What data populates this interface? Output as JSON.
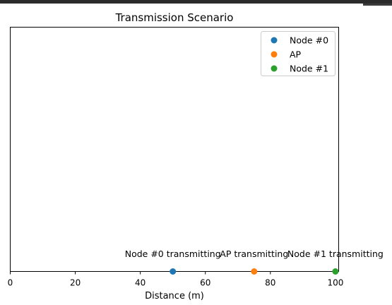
{
  "chart_data": {
    "type": "scatter",
    "title": "Transmission Scenario",
    "xlabel": "Distance (m)",
    "ylabel": "",
    "xlim": [
      0,
      101
    ],
    "ylim": [
      0,
      1
    ],
    "xticks": [
      0,
      20,
      40,
      60,
      80,
      100
    ],
    "grid": false,
    "legend_position": "top-right",
    "series": [
      {
        "name": "Node #0",
        "x": [
          50
        ],
        "y": [
          0
        ],
        "color": "#1f77b4"
      },
      {
        "name": "AP",
        "x": [
          75
        ],
        "y": [
          0
        ],
        "color": "#ff7f0e"
      },
      {
        "name": "Node #1",
        "x": [
          100
        ],
        "y": [
          0
        ],
        "color": "#2ca02c"
      }
    ],
    "annotations": [
      {
        "text": "Node #0 transmitting",
        "x": 50
      },
      {
        "text": "AP transmitting",
        "x": 75
      },
      {
        "text": "Node #1 transmitting",
        "x": 100
      }
    ]
  }
}
